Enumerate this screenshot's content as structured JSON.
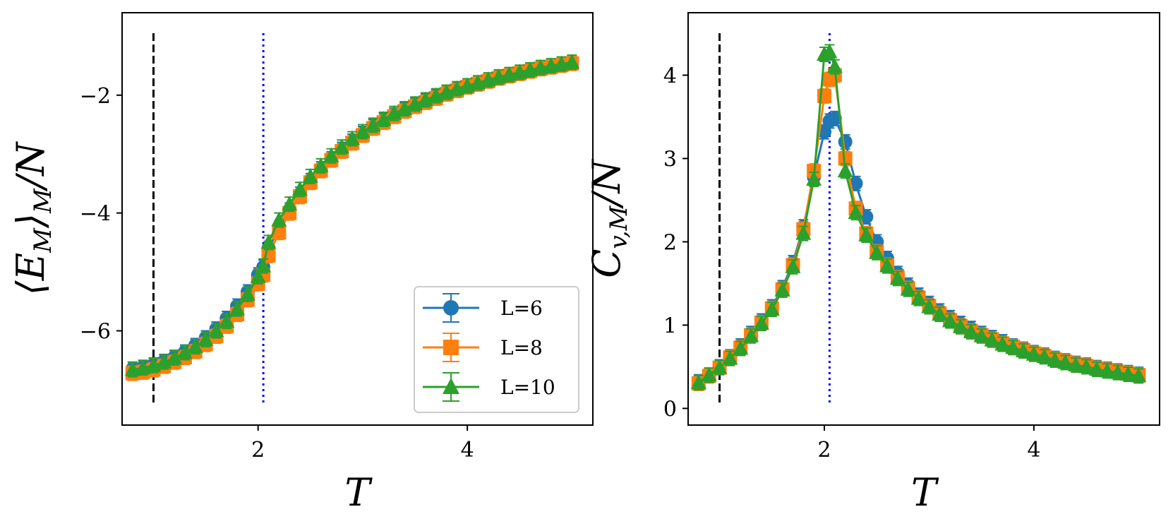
{
  "chart_data": [
    {
      "type": "line",
      "xlabel": "T",
      "ylabel": "⟨E_M⟩_M/N",
      "xlim": [
        0.7,
        5.2
      ],
      "ylim": [
        -7.6,
        -0.6
      ],
      "xticks": [
        2,
        4
      ],
      "yticks": [
        -6,
        -4,
        -2
      ],
      "xtick_labels": [
        "2",
        "4"
      ],
      "ytick_labels": [
        "−6",
        "−4",
        "−2"
      ],
      "vlines": [
        {
          "x": 1.0,
          "style": "dashed",
          "color": "#000000"
        },
        {
          "x": 2.05,
          "style": "dotted",
          "color": "#0000ff"
        }
      ],
      "x": [
        0.8,
        0.9,
        1.0,
        1.1,
        1.2,
        1.3,
        1.4,
        1.5,
        1.6,
        1.7,
        1.8,
        1.9,
        2.0,
        2.05,
        2.1,
        2.2,
        2.3,
        2.4,
        2.5,
        2.6,
        2.7,
        2.8,
        2.9,
        3.0,
        3.1,
        3.2,
        3.3,
        3.4,
        3.5,
        3.6,
        3.7,
        3.8,
        3.9,
        4.0,
        4.1,
        4.2,
        4.3,
        4.4,
        4.5,
        4.6,
        4.7,
        4.8,
        4.9,
        5.0
      ],
      "series": [
        {
          "name": "L=6",
          "color": "#1f77b4",
          "marker": "circle",
          "values": [
            -6.65,
            -6.62,
            -6.58,
            -6.52,
            -6.45,
            -6.36,
            -6.25,
            -6.12,
            -5.97,
            -5.79,
            -5.58,
            -5.34,
            -5.05,
            -4.92,
            -4.6,
            -4.25,
            -3.95,
            -3.68,
            -3.45,
            -3.25,
            -3.08,
            -2.92,
            -2.78,
            -2.65,
            -2.53,
            -2.43,
            -2.34,
            -2.25,
            -2.17,
            -2.1,
            -2.03,
            -1.96,
            -1.9,
            -1.85,
            -1.8,
            -1.75,
            -1.7,
            -1.66,
            -1.62,
            -1.58,
            -1.54,
            -1.51,
            -1.48,
            -1.45
          ]
        },
        {
          "name": "L=8",
          "color": "#ff7f0e",
          "marker": "square",
          "values": [
            -6.72,
            -6.7,
            -6.66,
            -6.6,
            -6.53,
            -6.45,
            -6.35,
            -6.23,
            -6.09,
            -5.92,
            -5.72,
            -5.47,
            -5.2,
            -5.05,
            -4.72,
            -4.33,
            -4.0,
            -3.72,
            -3.48,
            -3.28,
            -3.1,
            -2.95,
            -2.81,
            -2.68,
            -2.56,
            -2.46,
            -2.36,
            -2.27,
            -2.19,
            -2.12,
            -2.05,
            -1.98,
            -1.92,
            -1.86,
            -1.81,
            -1.76,
            -1.71,
            -1.67,
            -1.63,
            -1.59,
            -1.55,
            -1.52,
            -1.49,
            -1.46
          ]
        },
        {
          "name": "L=10",
          "color": "#2ca02c",
          "marker": "triangle",
          "values": [
            -6.66,
            -6.63,
            -6.59,
            -6.53,
            -6.46,
            -6.37,
            -6.27,
            -6.15,
            -6.0,
            -5.84,
            -5.63,
            -5.38,
            -5.08,
            -4.9,
            -4.5,
            -4.12,
            -3.85,
            -3.6,
            -3.38,
            -3.2,
            -3.03,
            -2.88,
            -2.74,
            -2.62,
            -2.51,
            -2.41,
            -2.31,
            -2.23,
            -2.15,
            -2.08,
            -2.01,
            -1.95,
            -1.89,
            -1.84,
            -1.79,
            -1.74,
            -1.69,
            -1.65,
            -1.61,
            -1.57,
            -1.53,
            -1.5,
            -1.47,
            -1.44
          ]
        }
      ],
      "legend": {
        "placement": "lower-right",
        "entries": [
          "L=6",
          "L=8",
          "L=10"
        ]
      }
    },
    {
      "type": "line",
      "xlabel": "T",
      "ylabel": "C_{v,M}/N",
      "xlim": [
        0.7,
        5.2
      ],
      "ylim": [
        -0.2,
        4.75
      ],
      "xticks": [
        2,
        4
      ],
      "yticks": [
        0,
        1,
        2,
        3,
        4
      ],
      "xtick_labels": [
        "2",
        "4"
      ],
      "ytick_labels": [
        "0",
        "1",
        "2",
        "3",
        "4"
      ],
      "vlines": [
        {
          "x": 1.0,
          "style": "dashed",
          "color": "#000000"
        },
        {
          "x": 2.05,
          "style": "dotted",
          "color": "#0000ff"
        }
      ],
      "x": [
        0.8,
        0.9,
        1.0,
        1.1,
        1.2,
        1.3,
        1.4,
        1.5,
        1.6,
        1.7,
        1.8,
        1.9,
        2.0,
        2.05,
        2.1,
        2.2,
        2.3,
        2.4,
        2.5,
        2.6,
        2.7,
        2.8,
        2.9,
        3.0,
        3.1,
        3.2,
        3.3,
        3.4,
        3.5,
        3.6,
        3.7,
        3.8,
        3.9,
        4.0,
        4.1,
        4.2,
        4.3,
        4.4,
        4.5,
        4.6,
        4.7,
        4.8,
        4.9,
        5.0
      ],
      "series": [
        {
          "name": "L=6",
          "color": "#1f77b4",
          "marker": "circle",
          "values": [
            0.32,
            0.4,
            0.5,
            0.62,
            0.75,
            0.9,
            1.05,
            1.22,
            1.45,
            1.75,
            2.18,
            2.78,
            3.32,
            3.45,
            3.48,
            3.2,
            2.7,
            2.3,
            2.0,
            1.8,
            1.62,
            1.48,
            1.36,
            1.26,
            1.17,
            1.09,
            1.02,
            0.96,
            0.9,
            0.85,
            0.8,
            0.75,
            0.71,
            0.67,
            0.64,
            0.6,
            0.57,
            0.54,
            0.52,
            0.49,
            0.47,
            0.45,
            0.43,
            0.41
          ]
        },
        {
          "name": "L=8",
          "color": "#ff7f0e",
          "marker": "square",
          "values": [
            0.3,
            0.39,
            0.49,
            0.61,
            0.73,
            0.88,
            1.03,
            1.2,
            1.43,
            1.72,
            2.15,
            2.85,
            3.75,
            3.95,
            4.0,
            3.0,
            2.4,
            2.1,
            1.88,
            1.72,
            1.57,
            1.44,
            1.33,
            1.23,
            1.14,
            1.06,
            0.99,
            0.93,
            0.88,
            0.83,
            0.78,
            0.74,
            0.7,
            0.66,
            0.63,
            0.59,
            0.56,
            0.53,
            0.51,
            0.48,
            0.46,
            0.44,
            0.42,
            0.4
          ]
        },
        {
          "name": "L=10",
          "color": "#2ca02c",
          "marker": "triangle",
          "values": [
            0.31,
            0.4,
            0.49,
            0.6,
            0.72,
            0.87,
            1.02,
            1.19,
            1.42,
            1.7,
            2.1,
            2.75,
            4.25,
            4.28,
            4.1,
            2.85,
            2.35,
            2.08,
            1.87,
            1.71,
            1.56,
            1.43,
            1.32,
            1.22,
            1.13,
            1.05,
            0.98,
            0.92,
            0.87,
            0.82,
            0.77,
            0.73,
            0.69,
            0.65,
            0.62,
            0.58,
            0.55,
            0.52,
            0.5,
            0.47,
            0.45,
            0.43,
            0.41,
            0.39
          ]
        }
      ]
    }
  ]
}
